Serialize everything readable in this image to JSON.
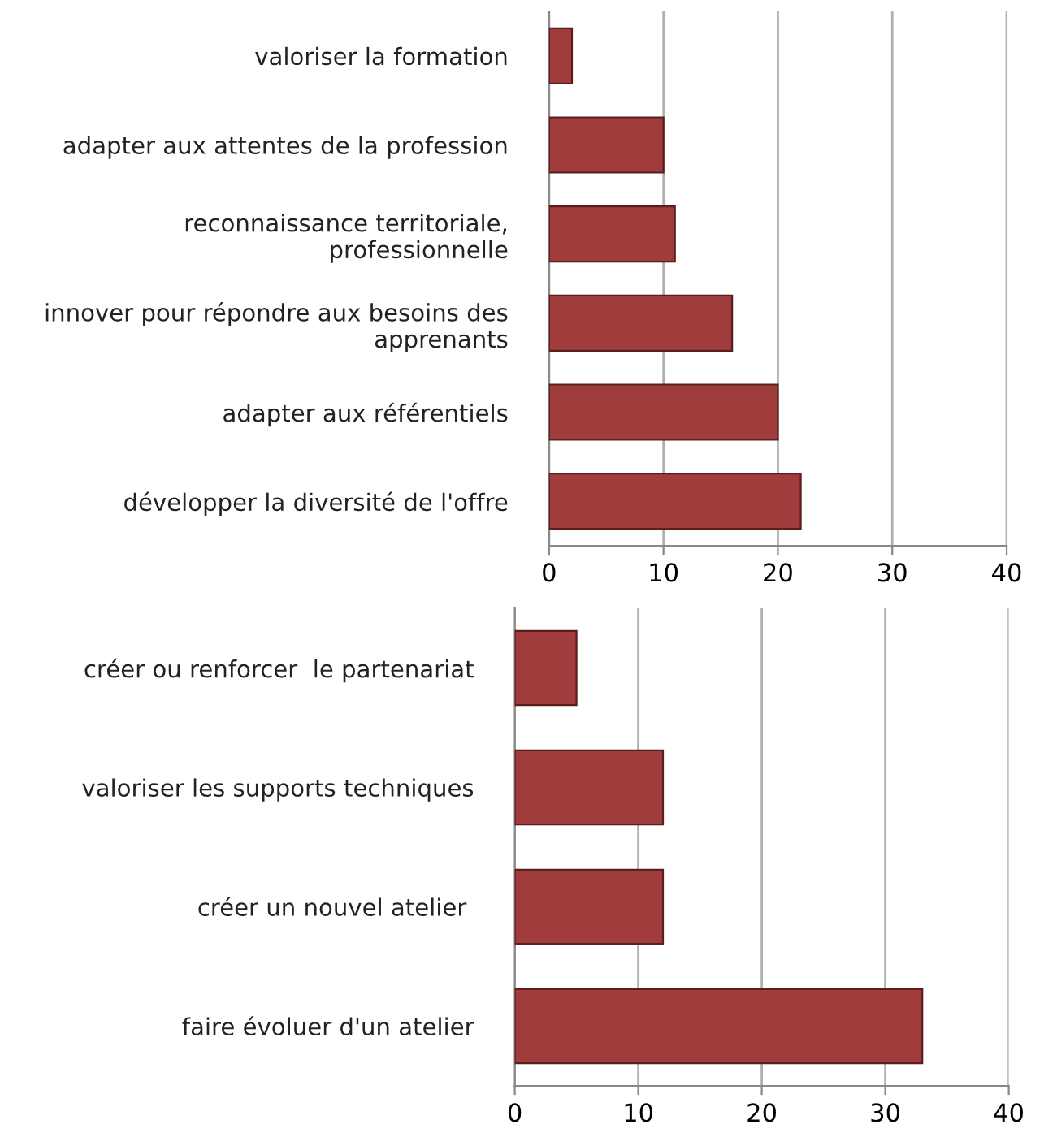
{
  "chart_data": [
    {
      "type": "bar",
      "orientation": "horizontal",
      "categories": [
        "valoriser la formation",
        "adapter aux attentes de la profession",
        "reconnaissance territoriale,\nprofessionnelle",
        "innover pour répondre aux besoins des\napprenants",
        "adapter aux référentiels",
        "développer la diversité de l'offre"
      ],
      "values": [
        2,
        10,
        11,
        16,
        20,
        22
      ],
      "color": "#a03c3c",
      "xlim": [
        0,
        40
      ],
      "xticks": [
        0,
        10,
        20,
        30,
        40
      ],
      "grid": "x"
    },
    {
      "type": "bar",
      "orientation": "horizontal",
      "categories": [
        "créer ou renforcer  le partenariat",
        "valoriser les supports techniques",
        "créer un nouvel atelier ",
        "faire évoluer d'un atelier"
      ],
      "values": [
        5,
        12,
        12,
        33
      ],
      "color": "#a03c3c",
      "xlim": [
        0,
        40
      ],
      "xticks": [
        0,
        10,
        20,
        30,
        40
      ],
      "grid": "x"
    }
  ]
}
